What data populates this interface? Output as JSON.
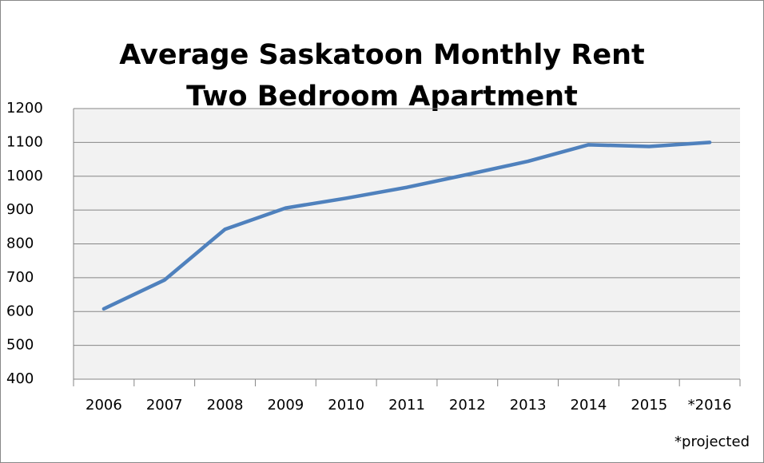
{
  "chart_data": {
    "type": "line",
    "title": [
      "Average Saskatoon Monthly Rent",
      "Two Bedroom Apartment"
    ],
    "categories": [
      "2006",
      "2007",
      "2008",
      "2009",
      "2010",
      "2011",
      "2012",
      "2013",
      "2014",
      "2015",
      "*2016"
    ],
    "values": [
      608,
      693,
      843,
      906,
      935,
      967,
      1005,
      1044,
      1093,
      1088,
      1100
    ],
    "color": "#4f81bd",
    "ylim": [
      400,
      1200
    ],
    "yticks": [
      400,
      500,
      600,
      700,
      800,
      900,
      1000,
      1100,
      1200
    ],
    "grid": true,
    "annotation": "*projected"
  }
}
